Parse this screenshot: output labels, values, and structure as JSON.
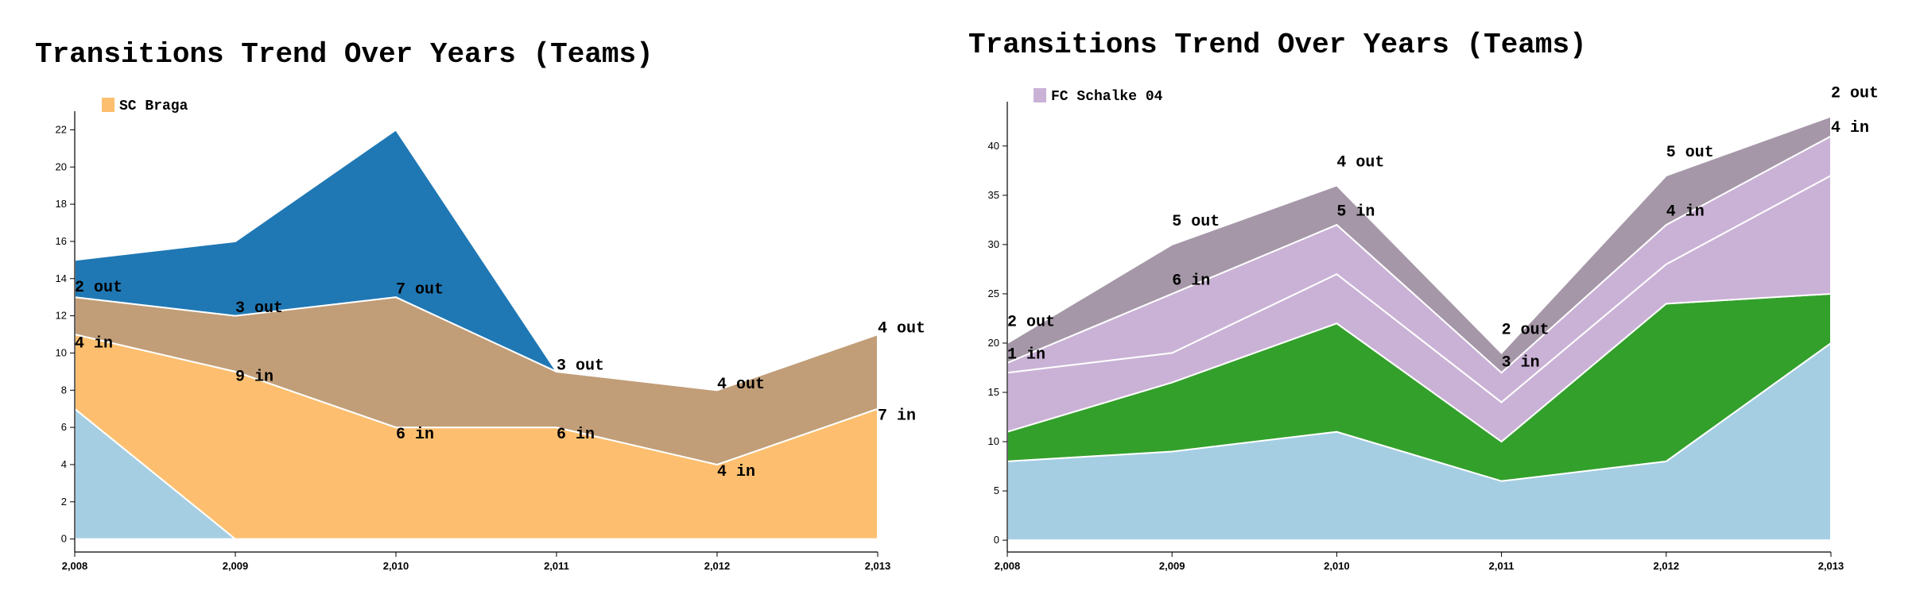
{
  "chart_data": [
    {
      "type": "area",
      "title": "Transitions Trend Over Years (Teams)",
      "x": [
        "2,008",
        "2,009",
        "2,010",
        "2,011",
        "2,012",
        "2,013"
      ],
      "y_ticks": [
        "0",
        "2",
        "4",
        "6",
        "8",
        "10",
        "12",
        "14",
        "16",
        "18",
        "20",
        "22"
      ],
      "ylim": [
        -0.7,
        23
      ],
      "stacked": true,
      "legend": {
        "label": "SC Braga",
        "color": "#fdbf6f",
        "position": "top-left"
      },
      "series": [
        {
          "color": "#a6cee3",
          "values": [
            7,
            0,
            0,
            0,
            0,
            0
          ]
        },
        {
          "color": "#fdbf6f",
          "values": [
            4,
            9,
            6,
            6,
            4,
            7
          ]
        },
        {
          "color": "#c19e78",
          "values": [
            2,
            3,
            7,
            3,
            4,
            4
          ]
        },
        {
          "color": "#1f78b4",
          "values": [
            2,
            4,
            9,
            0,
            0,
            0
          ]
        }
      ],
      "annotations": [
        {
          "text": "2 out",
          "xi": 0,
          "y": 13.6
        },
        {
          "text": "4 in",
          "xi": 0,
          "y": 10.6
        },
        {
          "text": "3 out",
          "xi": 1,
          "y": 12.5
        },
        {
          "text": "9 in",
          "xi": 1,
          "y": 8.8
        },
        {
          "text": "7 out",
          "xi": 2,
          "y": 13.5
        },
        {
          "text": "6 in",
          "xi": 2,
          "y": 5.7
        },
        {
          "text": "3 out",
          "xi": 3,
          "y": 9.4
        },
        {
          "text": "6 in",
          "xi": 3,
          "y": 5.7
        },
        {
          "text": "4 out",
          "xi": 4,
          "y": 8.4
        },
        {
          "text": "4 in",
          "xi": 4,
          "y": 3.7
        },
        {
          "text": "4 out",
          "xi": 5,
          "y": 11.4
        },
        {
          "text": "7 in",
          "xi": 5,
          "y": 6.7
        }
      ]
    },
    {
      "type": "area",
      "title": "Transitions Trend Over Years (Teams)",
      "x": [
        "2,008",
        "2,009",
        "2,010",
        "2,011",
        "2,012",
        "2,013"
      ],
      "y_ticks": [
        "0",
        "5",
        "10",
        "15",
        "20",
        "25",
        "30",
        "35",
        "40"
      ],
      "ylim": [
        -1.2,
        44.5
      ],
      "stacked": true,
      "legend": {
        "label": "FC Schalke 04",
        "color": "#cab2d6",
        "position": "top-left"
      },
      "series": [
        {
          "color": "#a6cee3",
          "values": [
            8,
            9,
            11,
            6,
            8,
            20
          ]
        },
        {
          "color": "#33a02c",
          "values": [
            3,
            7,
            11,
            4,
            16,
            5
          ]
        },
        {
          "color": "#cab2d6",
          "values": [
            6,
            3,
            5,
            4,
            4,
            12
          ]
        },
        {
          "color": "#cab2d6",
          "values": [
            1,
            6,
            5,
            3,
            4,
            4
          ]
        },
        {
          "color": "#a597a8",
          "values": [
            2,
            5,
            4,
            2,
            5,
            2
          ]
        }
      ],
      "annotations": [
        {
          "text": "2 out",
          "xi": 0,
          "y": 22.3
        },
        {
          "text": "1 in",
          "xi": 0,
          "y": 19.0
        },
        {
          "text": "5 out",
          "xi": 1,
          "y": 32.5
        },
        {
          "text": "6 in",
          "xi": 1,
          "y": 26.5
        },
        {
          "text": "4 out",
          "xi": 2,
          "y": 38.5
        },
        {
          "text": "5 in",
          "xi": 2,
          "y": 33.5
        },
        {
          "text": "2 out",
          "xi": 3,
          "y": 21.5
        },
        {
          "text": "3 in",
          "xi": 3,
          "y": 18.2
        },
        {
          "text": "5 out",
          "xi": 4,
          "y": 39.5
        },
        {
          "text": "4 in",
          "xi": 4,
          "y": 33.5
        },
        {
          "text": "2 out",
          "xi": 5,
          "y": 45.5
        },
        {
          "text": "4 in",
          "xi": 5,
          "y": 42.0
        }
      ]
    }
  ]
}
